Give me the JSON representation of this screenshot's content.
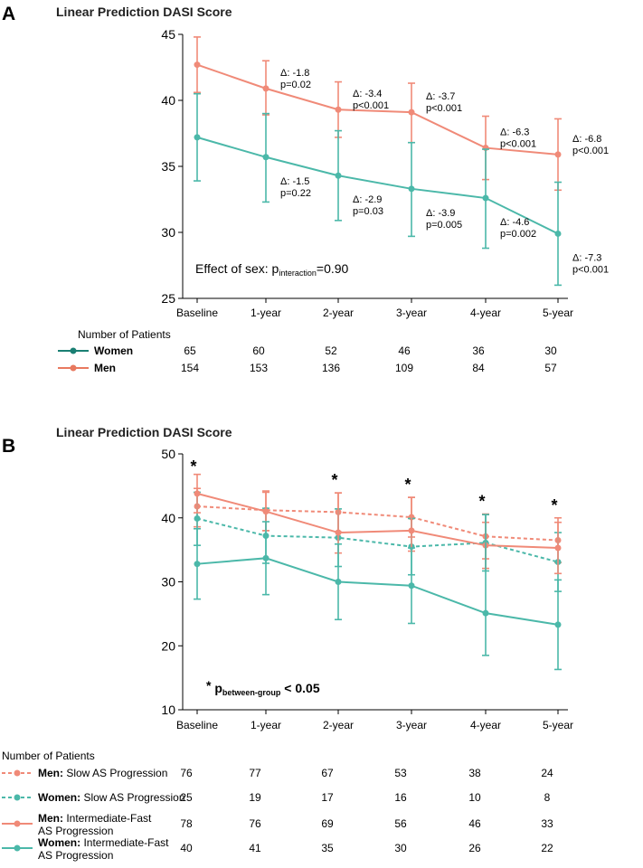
{
  "colors": {
    "women": "#4bb8a9",
    "men": "#f08a78",
    "women_dark": "#1a7f73",
    "men_dark": "#e8795f",
    "axis": "#000000"
  },
  "x_labels": [
    "Baseline",
    "1-year",
    "2-year",
    "3-year",
    "4-year",
    "5-year"
  ],
  "chart_data": [
    {
      "panel_label": "A",
      "type": "line",
      "title": "Linear Prediction DASI Score",
      "ylim": [
        25,
        45
      ],
      "yticks": [
        25,
        30,
        35,
        40,
        45
      ],
      "categories": [
        "Baseline",
        "1-year",
        "2-year",
        "3-year",
        "4-year",
        "5-year"
      ],
      "series": [
        {
          "name": "Men",
          "style": "solid",
          "color": "men",
          "values": [
            42.7,
            40.9,
            39.3,
            39.1,
            36.4,
            35.9
          ],
          "lower": [
            40.6,
            38.9,
            37.2,
            36.8,
            34.0,
            33.2
          ],
          "upper": [
            44.8,
            43.0,
            41.4,
            41.3,
            38.8,
            38.6
          ]
        },
        {
          "name": "Women",
          "style": "solid",
          "color": "women",
          "values": [
            37.2,
            35.7,
            34.3,
            33.3,
            32.6,
            29.9
          ],
          "lower": [
            33.9,
            32.3,
            30.9,
            29.7,
            28.8,
            26.0
          ],
          "upper": [
            40.5,
            39.0,
            37.7,
            36.8,
            36.3,
            33.8
          ]
        }
      ],
      "annotations_men": [
        {
          "delta": "Δ: -1.8",
          "p": "p=0.02"
        },
        {
          "delta": "Δ: -3.4",
          "p": "p<0.001"
        },
        {
          "delta": "Δ: -3.7",
          "p": "p<0.001"
        },
        {
          "delta": "Δ: -6.3",
          "p": "p<0.001"
        },
        {
          "delta": "Δ: -6.8",
          "p": "p<0.001"
        }
      ],
      "annotations_women": [
        {
          "delta": "Δ: -1.5",
          "p": "p=0.22"
        },
        {
          "delta": "Δ: -2.9",
          "p": "p=0.03"
        },
        {
          "delta": "Δ: -3.9",
          "p": "p=0.005"
        },
        {
          "delta": "Δ: -4.6",
          "p": "p=0.002"
        },
        {
          "delta": "Δ: -7.3",
          "p": "p<0.001"
        }
      ],
      "effect_note": {
        "prefix": "Effect of sex: p",
        "subscript": "interaction",
        "suffix": "=0.90"
      },
      "patients": {
        "header": "Number of Patients",
        "rows": [
          {
            "label": "Women",
            "color": "women_dark",
            "style": "solid",
            "counts": [
              "65",
              "60",
              "52",
              "46",
              "36",
              "30"
            ]
          },
          {
            "label": "Men",
            "color": "men_dark",
            "style": "solid",
            "counts": [
              "154",
              "153",
              "136",
              "109",
              "84",
              "57"
            ]
          }
        ]
      }
    },
    {
      "panel_label": "B",
      "type": "line",
      "title": "Linear Prediction DASI Score",
      "ylim": [
        10,
        50
      ],
      "yticks": [
        10,
        20,
        30,
        40,
        50
      ],
      "categories": [
        "Baseline",
        "1-year",
        "2-year",
        "3-year",
        "4-year",
        "5-year"
      ],
      "series": [
        {
          "name": "Men: Slow AS Progression",
          "style": "dashed",
          "color": "men",
          "values": [
            41.8,
            41.2,
            40.9,
            40.1,
            37.1,
            36.5
          ],
          "lower": [
            38.6,
            38.0,
            37.8,
            37.0,
            33.6,
            33.0
          ],
          "upper": [
            44.6,
            44.2,
            43.9,
            43.2,
            40.6,
            40.0
          ]
        },
        {
          "name": "Women: Slow AS Progression",
          "style": "dashed",
          "color": "women",
          "values": [
            39.9,
            37.2,
            36.9,
            35.5,
            36.1,
            33.1
          ],
          "lower": [
            35.7,
            32.9,
            32.4,
            31.1,
            31.7,
            28.5
          ],
          "upper": [
            44.0,
            41.5,
            41.4,
            39.9,
            40.5,
            37.7
          ]
        },
        {
          "name": "Men: Intermediate-Fast AS Progression",
          "style": "solid",
          "color": "men",
          "values": [
            43.8,
            41.0,
            37.7,
            38.0,
            35.7,
            35.3
          ],
          "lower": [
            40.8,
            38.0,
            34.5,
            34.8,
            32.1,
            31.3
          ],
          "upper": [
            46.8,
            44.0,
            43.9,
            43.2,
            39.3,
            39.3
          ]
        },
        {
          "name": "Women: Intermediate-Fast AS Progression",
          "style": "solid",
          "color": "women",
          "values": [
            32.8,
            33.7,
            30.0,
            29.4,
            25.1,
            23.3
          ],
          "lower": [
            27.3,
            28.0,
            24.1,
            23.5,
            18.5,
            16.3
          ],
          "upper": [
            38.3,
            39.4,
            35.9,
            35.3,
            40.5,
            30.3
          ]
        }
      ],
      "star_groups": [
        0,
        2,
        3,
        4,
        5
      ],
      "star_symbol": "*",
      "note": {
        "star": "*",
        "prefix": "p",
        "subscript": "between-group",
        "suffix": " < 0.05"
      },
      "patients": {
        "header": "Number of Patients",
        "rows": [
          {
            "bold": "Men:",
            "label": " Slow AS Progression",
            "label2": "",
            "color": "men",
            "style": "dashed",
            "counts": [
              "76",
              "77",
              "67",
              "53",
              "38",
              "24"
            ]
          },
          {
            "bold": "Women:",
            "label": " Slow AS Progression",
            "label2": "",
            "color": "women",
            "style": "dashed",
            "counts": [
              "25",
              "19",
              "17",
              "16",
              "10",
              "8"
            ]
          },
          {
            "bold": "Men:",
            "label": " Intermediate-Fast",
            "label2": "AS Progression",
            "color": "men",
            "style": "solid",
            "counts": [
              "78",
              "76",
              "69",
              "56",
              "46",
              "33"
            ]
          },
          {
            "bold": "Women:",
            "label": " Intermediate-Fast",
            "label2": "AS Progression",
            "color": "women",
            "style": "solid",
            "counts": [
              "40",
              "41",
              "35",
              "30",
              "26",
              "22"
            ]
          }
        ]
      }
    }
  ]
}
